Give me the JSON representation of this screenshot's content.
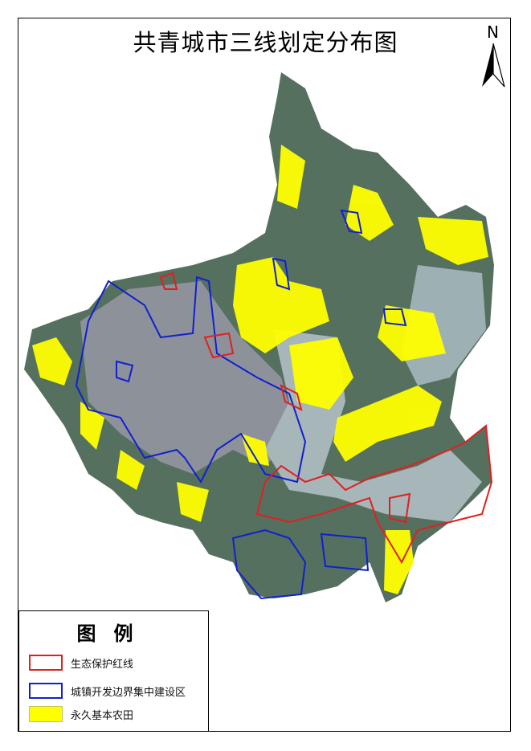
{
  "title": "共青城市三线划定分布图",
  "north_arrow": {
    "label": "N",
    "icon": "north-arrow-icon"
  },
  "legend": {
    "title": "图例",
    "items": [
      {
        "label": "生态保护红线",
        "type": "outline",
        "color": "#e02020"
      },
      {
        "label": "城镇开发边界集中建设区",
        "type": "outline",
        "color": "#1020d0"
      },
      {
        "label": "永久基本农田",
        "type": "fill",
        "color": "#ffff00"
      }
    ]
  },
  "colors": {
    "terrain": "#4f6a5e",
    "urban": "#8a8f9a",
    "water": "#9fb3b8",
    "farmland": "#ffff00",
    "ecological_redline": "#e02020",
    "urban_boundary": "#1020d0"
  }
}
